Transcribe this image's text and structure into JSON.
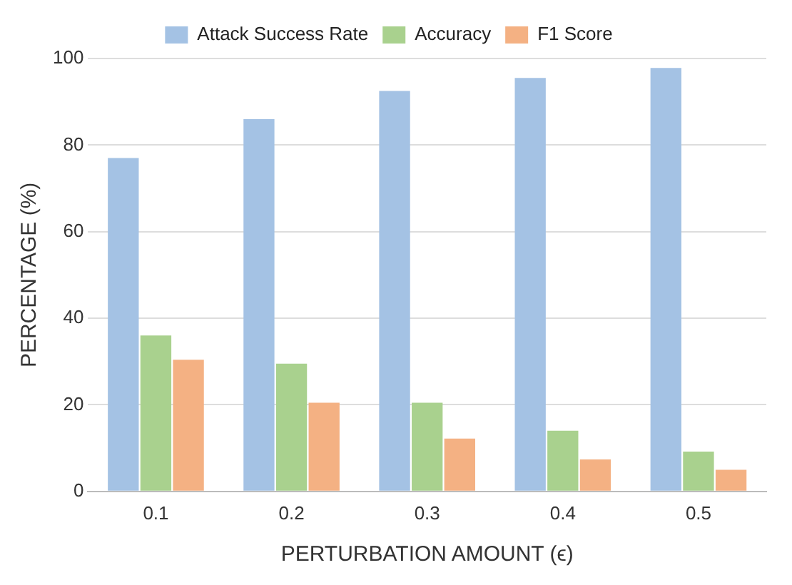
{
  "chart_data": {
    "type": "bar",
    "xlabel": "PERTURBATION AMOUNT (ϵ)",
    "ylabel": "PERCENTAGE (%)",
    "categories": [
      "0.1",
      "0.2",
      "0.3",
      "0.4",
      "0.5"
    ],
    "series": [
      {
        "name": "Attack Success Rate",
        "color": "#a4c2e4",
        "values": [
          77,
          86,
          92.5,
          95.5,
          97.8
        ]
      },
      {
        "name": "Accuracy",
        "color": "#a9d18e",
        "values": [
          36,
          29.5,
          20.5,
          14,
          9.2
        ]
      },
      {
        "name": "F1 Score",
        "color": "#f4b183",
        "values": [
          30.4,
          20.5,
          12.2,
          7.4,
          5
        ]
      }
    ],
    "ylim": [
      0,
      100
    ],
    "yticks": [
      0,
      20,
      40,
      60,
      80,
      100
    ],
    "grid": "y",
    "legend": "top"
  }
}
